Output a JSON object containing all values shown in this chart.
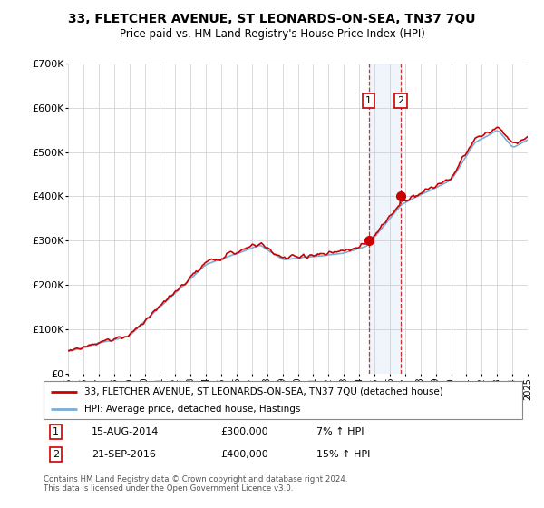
{
  "title": "33, FLETCHER AVENUE, ST LEONARDS-ON-SEA, TN37 7QU",
  "subtitle": "Price paid vs. HM Land Registry's House Price Index (HPI)",
  "background_color": "#ffffff",
  "grid_color": "#cccccc",
  "hpi_color": "#7aaed6",
  "price_color": "#cc0000",
  "sale1_price": 300000,
  "sale2_price": 400000,
  "sale1_text": "15-AUG-2014",
  "sale2_text": "21-SEP-2016",
  "sale1_pct": "7% ↑ HPI",
  "sale2_pct": "15% ↑ HPI",
  "legend_line1": "33, FLETCHER AVENUE, ST LEONARDS-ON-SEA, TN37 7QU (detached house)",
  "legend_line2": "HPI: Average price, detached house, Hastings",
  "footnote": "Contains HM Land Registry data © Crown copyright and database right 2024.\nThis data is licensed under the Open Government Licence v3.0.",
  "ylim": [
    0,
    700000
  ],
  "yticks": [
    0,
    100000,
    200000,
    300000,
    400000,
    500000,
    600000,
    700000
  ],
  "sale1_year": 2014.625,
  "sale2_year": 2016.708
}
